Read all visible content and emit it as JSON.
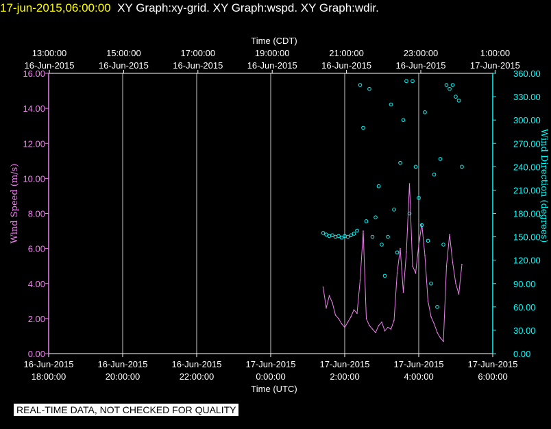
{
  "header": {
    "timestamp": "17-jun-2015,06:00:00",
    "graphs": "XY Graph:xy-grid.  XY Graph:wspd.  XY Graph:wdir."
  },
  "footer": {
    "quality_notice": "REAL-TIME DATA, NOT CHECKED FOR QUALITY"
  },
  "colors": {
    "background": "#000000",
    "grid": "#ffffff",
    "wind_speed": "#ee82ee",
    "wind_direction": "#00ffff",
    "timestamp": "#ffff00"
  },
  "chart_data": {
    "type": "scatter",
    "top_axis": {
      "label": "Time (CDT)",
      "ticks": [
        {
          "time": "13:00:00",
          "date": "16-Jun-2015"
        },
        {
          "time": "15:00:00",
          "date": "16-Jun-2015"
        },
        {
          "time": "17:00:00",
          "date": "16-Jun-2015"
        },
        {
          "time": "19:00:00",
          "date": "16-Jun-2015"
        },
        {
          "time": "21:00:00",
          "date": "16-Jun-2015"
        },
        {
          "time": "23:00:00",
          "date": "16-Jun-2015"
        },
        {
          "time": "1:00:00",
          "date": "17-Jun-2015"
        }
      ]
    },
    "bottom_axis": {
      "label": "Time (UTC)",
      "ticks": [
        {
          "date": "16-Jun-2015",
          "time": "18:00:00"
        },
        {
          "date": "16-Jun-2015",
          "time": "20:00:00"
        },
        {
          "date": "16-Jun-2015",
          "time": "22:00:00"
        },
        {
          "date": "17-Jun-2015",
          "time": "0:00:00"
        },
        {
          "date": "17-Jun-2015",
          "time": "2:00:00"
        },
        {
          "date": "17-Jun-2015",
          "time": "4:00:00"
        },
        {
          "date": "17-Jun-2015",
          "time": "6:00:00"
        }
      ],
      "range_utc": [
        "2015-06-16T18:00",
        "2015-06-17T06:00"
      ]
    },
    "left_axis": {
      "label": "Wind Speed (m/s)",
      "ticks": [
        "0.00",
        "2.00",
        "4.00",
        "6.00",
        "8.00",
        "10.00",
        "12.00",
        "14.00",
        "16.00"
      ],
      "ylim": [
        0,
        16
      ]
    },
    "right_axis": {
      "label": "Wind Direction (degrees)",
      "ticks": [
        "0.00",
        "30.00",
        "60.00",
        "90.00",
        "120.00",
        "150.00",
        "180.00",
        "210.00",
        "240.00",
        "270.00",
        "300.00",
        "330.00",
        "360.00"
      ],
      "ylim": [
        0,
        360
      ]
    },
    "grid": "vertical lines at major time ticks",
    "series": [
      {
        "name": "Wind Speed (m/s)",
        "style": "line",
        "color": "#ee82ee",
        "x": [
          "2015-06-17T01:25",
          "2015-06-17T01:30",
          "2015-06-17T01:35",
          "2015-06-17T01:40",
          "2015-06-17T01:45",
          "2015-06-17T01:50",
          "2015-06-17T01:55",
          "2015-06-17T02:00",
          "2015-06-17T02:05",
          "2015-06-17T02:10",
          "2015-06-17T02:15",
          "2015-06-17T02:20",
          "2015-06-17T02:25",
          "2015-06-17T02:30",
          "2015-06-17T02:35",
          "2015-06-17T02:40",
          "2015-06-17T02:45",
          "2015-06-17T02:50",
          "2015-06-17T02:55",
          "2015-06-17T03:00",
          "2015-06-17T03:05",
          "2015-06-17T03:10",
          "2015-06-17T03:15",
          "2015-06-17T03:20",
          "2015-06-17T03:25",
          "2015-06-17T03:30",
          "2015-06-17T03:35",
          "2015-06-17T03:40",
          "2015-06-17T03:45",
          "2015-06-17T03:50",
          "2015-06-17T03:55",
          "2015-06-17T04:00",
          "2015-06-17T04:05",
          "2015-06-17T04:10",
          "2015-06-17T04:15",
          "2015-06-17T04:20",
          "2015-06-17T04:25",
          "2015-06-17T04:30",
          "2015-06-17T04:35",
          "2015-06-17T04:40",
          "2015-06-17T04:45",
          "2015-06-17T04:50",
          "2015-06-17T04:55",
          "2015-06-17T05:00",
          "2015-06-17T05:05",
          "2015-06-17T05:10"
        ],
        "values": [
          3.8,
          2.6,
          3.3,
          2.9,
          2.2,
          2.0,
          1.7,
          1.5,
          1.8,
          2.1,
          2.5,
          2.3,
          4.2,
          7.0,
          2.0,
          1.6,
          1.4,
          1.2,
          1.6,
          1.8,
          1.3,
          1.5,
          1.4,
          1.9,
          4.6,
          6.0,
          3.5,
          5.8,
          9.7,
          5.0,
          4.6,
          6.2,
          7.4,
          5.6,
          3.0,
          2.1,
          1.7,
          1.2,
          0.9,
          0.7,
          5.0,
          6.8,
          5.2,
          4.0,
          3.4,
          5.1
        ]
      },
      {
        "name": "Wind Direction (degrees)",
        "style": "points",
        "color": "#00ffff",
        "x": [
          "2015-06-17T01:25",
          "2015-06-17T01:30",
          "2015-06-17T01:35",
          "2015-06-17T01:40",
          "2015-06-17T01:45",
          "2015-06-17T01:50",
          "2015-06-17T01:55",
          "2015-06-17T02:00",
          "2015-06-17T02:05",
          "2015-06-17T02:10",
          "2015-06-17T02:15",
          "2015-06-17T02:20",
          "2015-06-17T02:25",
          "2015-06-17T02:30",
          "2015-06-17T02:35",
          "2015-06-17T02:40",
          "2015-06-17T02:45",
          "2015-06-17T02:50",
          "2015-06-17T02:55",
          "2015-06-17T03:00",
          "2015-06-17T03:05",
          "2015-06-17T03:10",
          "2015-06-17T03:15",
          "2015-06-17T03:20",
          "2015-06-17T03:25",
          "2015-06-17T03:30",
          "2015-06-17T03:35",
          "2015-06-17T03:40",
          "2015-06-17T03:45",
          "2015-06-17T03:50",
          "2015-06-17T03:55",
          "2015-06-17T04:00",
          "2015-06-17T04:05",
          "2015-06-17T04:10",
          "2015-06-17T04:15",
          "2015-06-17T04:20",
          "2015-06-17T04:25",
          "2015-06-17T04:30",
          "2015-06-17T04:35",
          "2015-06-17T04:40",
          "2015-06-17T04:45",
          "2015-06-17T04:50",
          "2015-06-17T04:55",
          "2015-06-17T05:00",
          "2015-06-17T05:05",
          "2015-06-17T05:10"
        ],
        "values": [
          155,
          153,
          151,
          152,
          150,
          151,
          149,
          151,
          150,
          152,
          154,
          158,
          345,
          290,
          170,
          340,
          150,
          175,
          215,
          140,
          100,
          150,
          320,
          185,
          130,
          245,
          300,
          350,
          180,
          350,
          240,
          200,
          165,
          310,
          145,
          90,
          230,
          60,
          250,
          140,
          345,
          340,
          345,
          330,
          325,
          240
        ]
      }
    ]
  }
}
